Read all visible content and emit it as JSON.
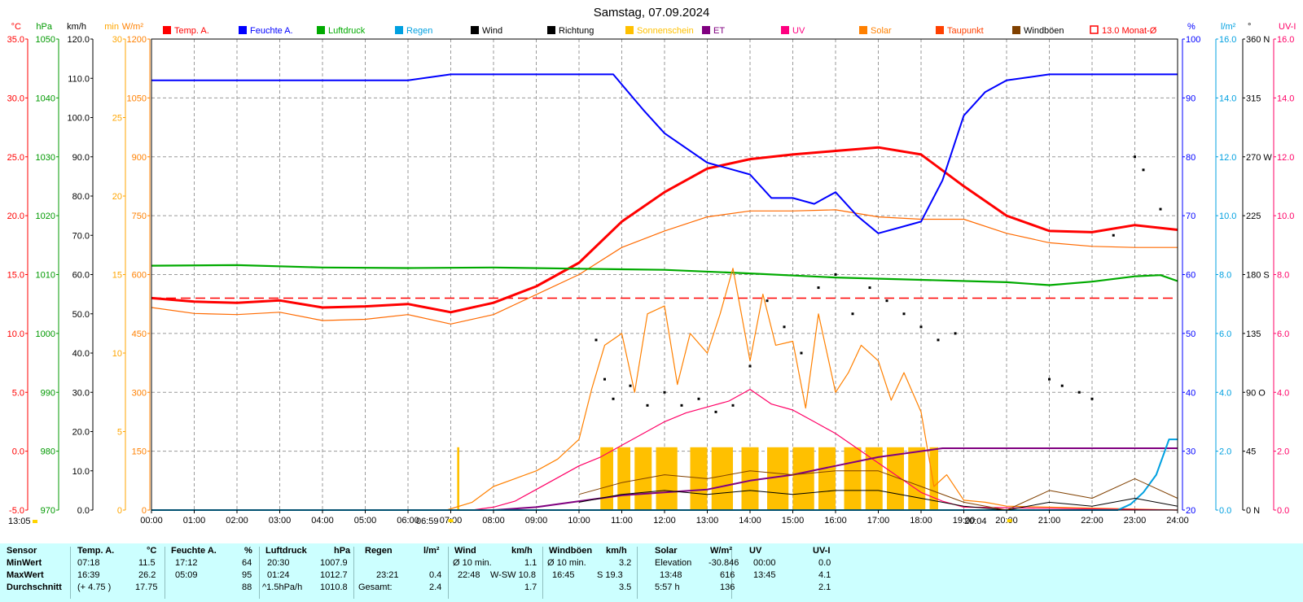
{
  "chart_data": {
    "type": "line",
    "title": "Samstag, 07.09.2024",
    "x_ticks": [
      "00:00",
      "01:00",
      "02:00",
      "03:00",
      "04:00",
      "05:00",
      "06:00",
      "07:00",
      "08:00",
      "09:00",
      "10:00",
      "11:00",
      "12:00",
      "13:00",
      "14:00",
      "15:00",
      "16:00",
      "17:00",
      "18:00",
      "19:00",
      "20:00",
      "21:00",
      "22:00",
      "23:00",
      "24:00"
    ],
    "sunrise": "06:59",
    "sunset": "20:04",
    "bottom_left_time": "13:05",
    "left_axes": [
      {
        "unit": "°C",
        "color": "#ff0000",
        "ticks": [
          "35.0",
          "30.0",
          "25.0",
          "20.0",
          "15.0",
          "10.0",
          "5.0",
          "0.0",
          "-5.0"
        ]
      },
      {
        "unit": "hPa",
        "color": "#009900",
        "ticks": [
          "1050",
          "1040",
          "1030",
          "1020",
          "1010",
          "1000",
          "990",
          "980",
          "970"
        ]
      },
      {
        "unit": "km/h",
        "color": "#000000",
        "ticks": [
          "120.0",
          "110.0",
          "100.0",
          "90.0",
          "80.0",
          "70.0",
          "60.0",
          "50.0",
          "40.0",
          "30.0",
          "20.0",
          "10.0",
          "0.0"
        ]
      },
      {
        "unit": "min",
        "color": "#ffa500",
        "ticks": [
          "30",
          "25",
          "20",
          "15",
          "10",
          "5",
          "0"
        ]
      },
      {
        "unit": "W/m²",
        "color": "#ff8000",
        "ticks": [
          "1200",
          "1050",
          "900",
          "750",
          "600",
          "450",
          "300",
          "150",
          "0"
        ]
      }
    ],
    "right_axes": [
      {
        "unit": "%",
        "color": "#0000ff",
        "ticks": [
          "100",
          "90",
          "80",
          "70",
          "60",
          "50",
          "40",
          "30",
          "20"
        ]
      },
      {
        "unit": "l/m²",
        "color": "#00a0e0",
        "ticks": [
          "16.0",
          "14.0",
          "12.0",
          "10.0",
          "8.0",
          "6.0",
          "4.0",
          "2.0",
          "0.0"
        ]
      },
      {
        "unit": "°",
        "color": "#000000",
        "ticks": [
          "360 N",
          "315",
          "270 W",
          "225",
          "180 S",
          "135",
          "90 O",
          "45",
          "0   N"
        ]
      },
      {
        "unit": "UV-I",
        "color": "#ff0066",
        "ticks": [
          "16.0",
          "14.0",
          "12.0",
          "10.0",
          "8.0",
          "6.0",
          "4.0",
          "2.0",
          "0.0"
        ]
      }
    ],
    "legend": [
      {
        "label": "Temp. A.",
        "color": "#ff0000"
      },
      {
        "label": "Feuchte A.",
        "color": "#0000ff"
      },
      {
        "label": "Luftdruck",
        "color": "#00aa00"
      },
      {
        "label": "Regen",
        "color": "#00a0e0"
      },
      {
        "label": "Wind",
        "color": "#000000"
      },
      {
        "label": "Richtung",
        "color": "#000000"
      },
      {
        "label": "Sonnenschein",
        "color": "#ffc000"
      },
      {
        "label": "ET",
        "color": "#800080"
      },
      {
        "label": "UV",
        "color": "#ff0080"
      },
      {
        "label": "Solar",
        "color": "#ff8000"
      },
      {
        "label": "Taupunkt",
        "color": "#ff4000"
      },
      {
        "label": "Windböen",
        "color": "#804000"
      },
      {
        "label": "13.0 Monat-Ø",
        "color": "#ff0000",
        "outline": true
      }
    ],
    "month_avg_temp": 13.0,
    "series": [
      {
        "name": "Temp. A.",
        "axis": "temp",
        "color": "#ff0000",
        "x": [
          0,
          1,
          2,
          3,
          4,
          5,
          6,
          7,
          8,
          9,
          10,
          11,
          12,
          13,
          14,
          15,
          16,
          17,
          18,
          19,
          20,
          21,
          22,
          23,
          24
        ],
        "values": [
          13.0,
          12.7,
          12.6,
          12.8,
          12.2,
          12.3,
          12.5,
          11.8,
          12.6,
          14.0,
          16.0,
          19.5,
          22.0,
          24.0,
          24.8,
          25.2,
          25.5,
          25.8,
          25.2,
          22.5,
          20.0,
          18.7,
          18.6,
          19.2,
          18.8
        ]
      },
      {
        "name": "Taupunkt",
        "axis": "temp",
        "color": "#ff6a00",
        "x": [
          0,
          1,
          2,
          3,
          4,
          5,
          6,
          7,
          8,
          9,
          10,
          11,
          12,
          13,
          14,
          15,
          16,
          17,
          18,
          19,
          20,
          21,
          22,
          23,
          24
        ],
        "values": [
          12.2,
          11.7,
          11.6,
          11.8,
          11.1,
          11.2,
          11.6,
          10.8,
          11.6,
          13.3,
          15.0,
          17.3,
          18.7,
          19.9,
          20.4,
          20.4,
          20.5,
          19.9,
          19.7,
          19.7,
          18.5,
          17.7,
          17.4,
          17.3,
          17.3
        ]
      },
      {
        "name": "Feuchte A.",
        "axis": "hum",
        "color": "#0000ff",
        "x": [
          0,
          1,
          2,
          3,
          4,
          5,
          6,
          7,
          8,
          9,
          10,
          10.8,
          11.5,
          12,
          13,
          13.5,
          14,
          14.5,
          15,
          15.5,
          16,
          16.5,
          17,
          17.5,
          18,
          18.5,
          19,
          19.5,
          20,
          21,
          22,
          23,
          24
        ],
        "values": [
          93,
          93,
          93,
          93,
          93,
          93,
          93,
          94,
          94,
          94,
          94,
          94,
          88,
          84,
          79,
          78,
          77,
          73,
          73,
          72,
          74,
          70,
          67,
          68,
          69,
          76,
          87,
          91,
          93,
          94,
          94,
          94,
          94
        ]
      },
      {
        "name": "Luftdruck",
        "axis": "press",
        "color": "#00aa00",
        "x": [
          0,
          2,
          4,
          6,
          8,
          10,
          12,
          14,
          16,
          18,
          20,
          21,
          22,
          23,
          23.6,
          24
        ],
        "values": [
          1011.5,
          1011.6,
          1011.2,
          1011.1,
          1011.2,
          1011.0,
          1010.8,
          1010.2,
          1009.5,
          1009.1,
          1008.7,
          1008.2,
          1008.8,
          1009.7,
          1009.9,
          1008.9
        ]
      },
      {
        "name": "Solar",
        "axis": "solar",
        "color": "#ff8000",
        "x": [
          6.9,
          7.5,
          8,
          8.5,
          9,
          9.5,
          10,
          10.3,
          10.6,
          11,
          11.3,
          11.6,
          12,
          12.3,
          12.6,
          13,
          13.3,
          13.6,
          14,
          14.3,
          14.6,
          15,
          15.3,
          15.6,
          16,
          16.3,
          16.6,
          17,
          17.3,
          17.6,
          18,
          18.3,
          18.6,
          19,
          19.5,
          20,
          24
        ],
        "values": [
          0,
          20,
          60,
          80,
          100,
          130,
          180,
          310,
          420,
          450,
          300,
          500,
          520,
          320,
          450,
          400,
          500,
          616,
          380,
          550,
          420,
          430,
          260,
          500,
          300,
          350,
          420,
          380,
          280,
          350,
          250,
          60,
          90,
          25,
          20,
          10,
          0
        ]
      },
      {
        "name": "UV",
        "axis": "uv",
        "color": "#ff0066",
        "x": [
          7.5,
          8,
          8.5,
          9,
          9.5,
          10,
          10.5,
          11,
          11.5,
          12,
          12.5,
          13,
          13.5,
          14,
          14.5,
          15,
          15.5,
          16,
          16.5,
          17,
          17.5,
          18,
          18.5,
          19,
          24
        ],
        "values": [
          0,
          0.1,
          0.3,
          0.7,
          1.1,
          1.5,
          1.8,
          2.2,
          2.6,
          3.0,
          3.3,
          3.5,
          3.7,
          4.1,
          3.6,
          3.4,
          3.0,
          2.6,
          2.1,
          1.6,
          1.1,
          0.6,
          0.3,
          0.1,
          0
        ]
      },
      {
        "name": "ET",
        "axis": "uv",
        "color": "#800080",
        "x": [
          8,
          9,
          10,
          11,
          12,
          13,
          14,
          15,
          16,
          17,
          18,
          18.5,
          24
        ],
        "values": [
          0,
          0.1,
          0.3,
          0.5,
          0.6,
          0.7,
          1.0,
          1.2,
          1.5,
          1.8,
          2.0,
          2.1,
          2.1
        ]
      },
      {
        "name": "Regen",
        "axis": "rain",
        "color": "#00a0e0",
        "x": [
          0,
          22.6,
          22.9,
          23.2,
          23.5,
          23.8,
          24
        ],
        "values": [
          0,
          0,
          0.2,
          0.6,
          1.2,
          2.4,
          2.4
        ]
      },
      {
        "name": "Wind",
        "axis": "wind",
        "color": "#000000",
        "x": [
          10,
          11,
          12,
          13,
          14,
          15,
          16,
          17,
          18,
          19,
          20,
          21,
          22,
          23,
          24
        ],
        "values": [
          2,
          4,
          5,
          4,
          5,
          4,
          5,
          5,
          3,
          1,
          0,
          2,
          1,
          3,
          1
        ]
      },
      {
        "name": "Windböen",
        "axis": "wind",
        "color": "#804000",
        "x": [
          10,
          11,
          12,
          13,
          14,
          15,
          16,
          17,
          18,
          19,
          20,
          21,
          22,
          23,
          24
        ],
        "values": [
          4,
          7,
          9,
          8,
          10,
          9,
          10,
          10,
          6,
          2,
          0,
          5,
          3,
          8,
          3
        ]
      }
    ],
    "direction_points": {
      "axis": "dir",
      "x": [
        10.4,
        10.6,
        10.8,
        11.2,
        11.6,
        12,
        12.4,
        12.8,
        13.2,
        13.6,
        14,
        14.4,
        14.8,
        15.2,
        15.6,
        16,
        16.4,
        16.8,
        17.2,
        17.6,
        18,
        18.4,
        18.8,
        21,
        21.3,
        21.7,
        22,
        22.5,
        23,
        23.2,
        23.6
      ],
      "values": [
        130,
        100,
        85,
        95,
        80,
        90,
        80,
        85,
        75,
        80,
        110,
        160,
        140,
        120,
        170,
        180,
        150,
        170,
        160,
        150,
        140,
        130,
        135,
        100,
        95,
        90,
        85,
        210,
        270,
        260,
        230
      ]
    },
    "sunshine_bars": {
      "x_start": [
        7.15,
        10.5,
        10.9,
        11.3,
        11.8,
        12.6,
        13.1,
        13.8,
        14.4,
        15.0,
        15.6,
        16.2,
        16.7,
        17.2,
        17.7,
        18.2
      ],
      "x_end": [
        7.2,
        10.8,
        11.2,
        11.7,
        12.3,
        13.0,
        13.6,
        14.2,
        14.9,
        15.5,
        16.0,
        16.6,
        17.1,
        17.6,
        18.1,
        18.4
      ],
      "minutes": [
        4,
        4,
        4,
        4,
        4,
        4,
        4,
        4,
        4,
        4,
        4,
        4,
        4,
        4,
        4,
        4
      ]
    }
  },
  "table": {
    "headers": {
      "sensor": "Sensor",
      "temp": "Temp. A.",
      "temp_unit": "°C",
      "hum": "Feuchte A.",
      "hum_unit": "%",
      "press": "Luftdruck",
      "press_unit": "hPa",
      "rain": "Regen",
      "rain_unit": "l/m²",
      "wind": "Wind",
      "wind_unit": "km/h",
      "gust": "Windböen",
      "gust_unit": "km/h",
      "solar": "Solar",
      "solar_unit": "W/m²",
      "uv": "UV",
      "uvi": "UV-I"
    },
    "row_labels": [
      "MinWert",
      "MaxWert",
      "Durchschnitt"
    ],
    "temp": [
      [
        "07:18",
        "11.5"
      ],
      [
        "16:39",
        "26.2"
      ],
      [
        "(+ 4.75 )",
        "17.75"
      ]
    ],
    "hum": [
      [
        "17:12",
        "64"
      ],
      [
        "05:09",
        "95"
      ],
      [
        "",
        "88"
      ]
    ],
    "press": [
      [
        "20:30",
        "1007.9"
      ],
      [
        "01:24",
        "1012.7"
      ],
      [
        "^1.5hPa/h",
        "1010.8"
      ]
    ],
    "rain": [
      [
        "",
        ""
      ],
      [
        "23:21",
        "0.4"
      ],
      [
        "Gesamt:",
        "2.4"
      ]
    ],
    "wind": [
      [
        "Ø 10 min.",
        "1.1"
      ],
      [
        "22:48",
        "W-SW 10.8"
      ],
      [
        "",
        "1.7"
      ]
    ],
    "gust": [
      [
        "Ø 10 min.",
        "3.2"
      ],
      [
        "16:45",
        "S 19.3"
      ],
      [
        "",
        "3.5"
      ]
    ],
    "solar": [
      [
        "Elevation",
        "-30.846"
      ],
      [
        "13:48",
        "616"
      ],
      [
        "5:57 h",
        "136"
      ]
    ],
    "uv": [
      [
        "00:00",
        "0.0"
      ],
      [
        "13:45",
        "4.1"
      ],
      [
        "",
        "2.1"
      ]
    ]
  }
}
